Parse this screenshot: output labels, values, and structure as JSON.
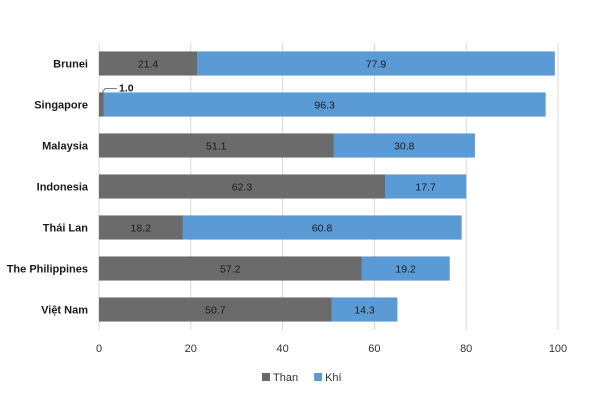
{
  "chart_data": {
    "type": "bar",
    "orientation": "horizontal",
    "stacked": true,
    "categories": [
      "Brunei",
      "Singapore",
      "Malaysia",
      "Indonesia",
      "Thái Lan",
      "The Philippines",
      "Việt Nam"
    ],
    "series": [
      {
        "name": "Than",
        "color": "#6b6b6b",
        "values": [
          21.4,
          1.0,
          51.1,
          62.3,
          18.2,
          57.2,
          50.7
        ]
      },
      {
        "name": "Khí",
        "color": "#5b9bd5",
        "values": [
          77.9,
          96.3,
          30.8,
          17.7,
          60.8,
          19.2,
          14.3
        ]
      }
    ],
    "data_labels": {
      "Than": [
        "21.4",
        "1.0",
        "51.1",
        "62.3",
        "18.2",
        "57.2",
        "50.7"
      ],
      "Khí": [
        "77.9",
        "96.3",
        "30.8",
        "17.7",
        "60.8",
        "19.2",
        "14.3"
      ]
    },
    "xlim": [
      0,
      100
    ],
    "xticks": [
      0,
      20,
      40,
      60,
      80,
      100
    ],
    "xtick_labels": [
      "0",
      "20",
      "40",
      "60",
      "80",
      "100"
    ],
    "grid": "vertical",
    "legend": "bottom-center",
    "title": "",
    "xlabel": "",
    "ylabel": ""
  }
}
